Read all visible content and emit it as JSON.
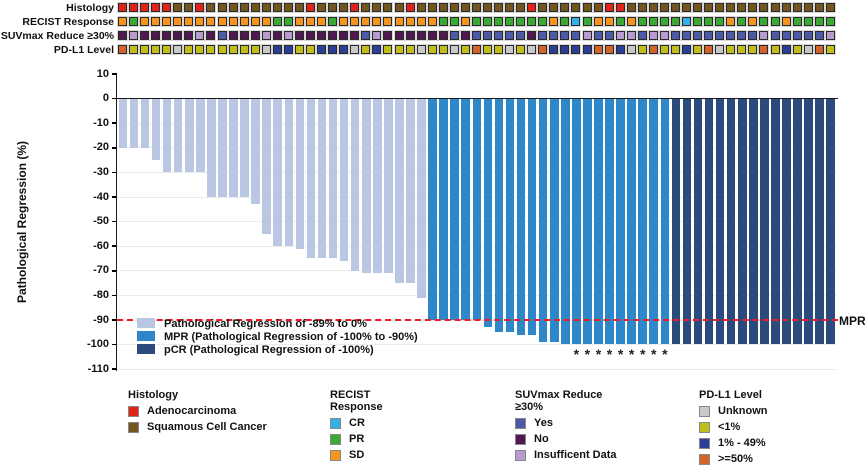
{
  "tracks": [
    {
      "label": "Histology",
      "map": {
        "A": "#e2231a",
        "S": "#73561f"
      },
      "values": [
        "A",
        "A",
        "A",
        "A",
        "A",
        "S",
        "S",
        "A",
        "S",
        "S",
        "S",
        "S",
        "S",
        "S",
        "S",
        "S",
        "S",
        "A",
        "S",
        "S",
        "S",
        "A",
        "S",
        "S",
        "S",
        "S",
        "A",
        "S",
        "S",
        "S",
        "S",
        "S",
        "S",
        "S",
        "S",
        "S",
        "S",
        "A",
        "S",
        "S",
        "S",
        "S",
        "S",
        "S",
        "A",
        "A",
        "S",
        "S",
        "S",
        "S",
        "S",
        "S",
        "S",
        "S",
        "S",
        "S",
        "S",
        "S",
        "S",
        "S",
        "S",
        "S",
        "S",
        "S",
        "S"
      ]
    },
    {
      "label": "RECIST Response",
      "map": {
        "SD": "#f7941e",
        "PR": "#3aaa35",
        "CR": "#33b1e7"
      },
      "values": [
        "SD",
        "PR",
        "SD",
        "SD",
        "SD",
        "SD",
        "SD",
        "SD",
        "SD",
        "SD",
        "SD",
        "SD",
        "SD",
        "SD",
        "PR",
        "PR",
        "SD",
        "SD",
        "SD",
        "PR",
        "SD",
        "SD",
        "SD",
        "SD",
        "SD",
        "SD",
        "SD",
        "SD",
        "SD",
        "PR",
        "PR",
        "SD",
        "PR",
        "PR",
        "PR",
        "PR",
        "PR",
        "PR",
        "PR",
        "SD",
        "PR",
        "CR",
        "PR",
        "SD",
        "SD",
        "PR",
        "SD",
        "PR",
        "PR",
        "PR",
        "PR",
        "CR",
        "PR",
        "PR",
        "PR",
        "SD",
        "PR",
        "SD",
        "PR",
        "PR",
        "SD",
        "PR",
        "PR",
        "PR",
        "PR"
      ]
    },
    {
      "label": "SUVmax Reduce ≥30%",
      "map": {
        "Y": "#4d5aa7",
        "N": "#511751",
        "I": "#b79bd0"
      },
      "values": [
        "N",
        "I",
        "N",
        "N",
        "N",
        "N",
        "N",
        "I",
        "N",
        "Y",
        "N",
        "N",
        "N",
        "I",
        "N",
        "I",
        "N",
        "N",
        "N",
        "N",
        "N",
        "N",
        "Y",
        "I",
        "N",
        "N",
        "N",
        "N",
        "N",
        "N",
        "Y",
        "N",
        "Y",
        "Y",
        "Y",
        "Y",
        "Y",
        "N",
        "Y",
        "Y",
        "Y",
        "Y",
        "I",
        "Y",
        "Y",
        "I",
        "I",
        "Y",
        "I",
        "I",
        "Y",
        "Y",
        "Y",
        "Y",
        "Y",
        "Y",
        "Y",
        "Y",
        "I",
        "Y",
        "Y",
        "Y",
        "Y",
        "Y",
        "I"
      ]
    },
    {
      "label": "PD-L1 Level",
      "map": {
        "U": "#c9c9c9",
        "L": "#c1bd1b",
        "B": "#2c3f97",
        "O": "#d2632b"
      },
      "values": [
        "O",
        "L",
        "L",
        "L",
        "L",
        "U",
        "L",
        "L",
        "L",
        "L",
        "L",
        "L",
        "L",
        "U",
        "B",
        "B",
        "L",
        "L",
        "B",
        "B",
        "B",
        "U",
        "L",
        "B",
        "L",
        "L",
        "L",
        "U",
        "L",
        "L",
        "U",
        "L",
        "O",
        "L",
        "L",
        "U",
        "L",
        "U",
        "O",
        "B",
        "B",
        "B",
        "B",
        "O",
        "O",
        "B",
        "U",
        "L",
        "O",
        "L",
        "L",
        "B",
        "L",
        "O",
        "U",
        "L",
        "L",
        "L",
        "O",
        "L",
        "B",
        "L",
        "U",
        "O",
        "L"
      ]
    }
  ],
  "chart_data": {
    "type": "bar",
    "title": "",
    "ylabel": "Pathological Regression (%)",
    "ylim": [
      -110,
      10
    ],
    "yticks": [
      10,
      0,
      -10,
      -20,
      -30,
      -40,
      -50,
      -60,
      -70,
      -80,
      -90,
      -100,
      -110
    ],
    "grid": true,
    "values": [
      -20,
      -20,
      -20,
      -25,
      -30,
      -30,
      -30,
      -30,
      -40,
      -40,
      -40,
      -40,
      -43,
      -55,
      -60,
      -60,
      -61,
      -65,
      -65,
      -65,
      -66,
      -70,
      -71,
      -71,
      -71,
      -75,
      -75,
      -81,
      -90,
      -90,
      -90,
      -90,
      -90,
      -93,
      -95,
      -95,
      -96,
      -96,
      -99,
      -99,
      -100,
      -100,
      -100,
      -100,
      -100,
      -100,
      -100,
      -100,
      -100,
      -100,
      -100,
      -100,
      -100,
      -100,
      -100,
      -100,
      -100,
      -100,
      -100,
      -100,
      -100,
      -100,
      -100,
      -100,
      -100
    ],
    "group": [
      0,
      0,
      0,
      0,
      0,
      0,
      0,
      0,
      0,
      0,
      0,
      0,
      0,
      0,
      0,
      0,
      0,
      0,
      0,
      0,
      0,
      0,
      0,
      0,
      0,
      0,
      0,
      0,
      1,
      1,
      1,
      1,
      1,
      1,
      1,
      1,
      1,
      1,
      1,
      1,
      1,
      1,
      1,
      1,
      1,
      1,
      1,
      1,
      1,
      1,
      2,
      2,
      2,
      2,
      2,
      2,
      2,
      2,
      2,
      2,
      2,
      2,
      2,
      2,
      2
    ],
    "group_names": [
      "Pathological Regression of -89% to 0%",
      "MPR (Pathological Regression of -100% to -90%)",
      "pCR (Pathological Regression of -100%)"
    ],
    "group_colors": [
      "#b9c7e3",
      "#2e87c8",
      "#2a4b7c"
    ],
    "asterisk_bars": [
      42,
      43,
      44,
      45,
      46,
      47,
      48,
      49,
      50
    ],
    "asterisk_symbol": "*",
    "mpr_line_y": -90,
    "mpr_line_label": "MPR",
    "mpr_line_color": "#ed1c24"
  },
  "plot_legend": [
    {
      "label": "Pathological Regression of -89% to 0%"
    },
    {
      "label": "MPR (Pathological Regression of -100% to -90%)"
    },
    {
      "label": "pCR (Pathological Regression of -100%)"
    }
  ],
  "bottom_legend": [
    {
      "title": "Histology",
      "items": [
        {
          "label": "Adenocarcinoma",
          "color": "#e2231a"
        },
        {
          "label": "Squamous Cell Cancer",
          "color": "#73561f"
        }
      ]
    },
    {
      "title": "RECIST Response",
      "items": [
        {
          "label": "CR",
          "color": "#33b1e7"
        },
        {
          "label": "PR",
          "color": "#3aaa35"
        },
        {
          "label": "SD",
          "color": "#f7941e"
        }
      ]
    },
    {
      "title": "SUVmax Reduce ≥30%",
      "items": [
        {
          "label": "Yes",
          "color": "#4d5aa7"
        },
        {
          "label": "No",
          "color": "#511751"
        },
        {
          "label": "Insufficent Data",
          "color": "#b79bd0"
        }
      ]
    },
    {
      "title": "PD-L1 Level",
      "items": [
        {
          "label": "Unknown",
          "color": "#c9c9c9"
        },
        {
          "label": "<1%",
          "color": "#c1bd1b"
        },
        {
          "label": "1% - 49%",
          "color": "#2c3f97"
        },
        {
          "label": ">=50%",
          "color": "#d2632b"
        }
      ]
    }
  ]
}
